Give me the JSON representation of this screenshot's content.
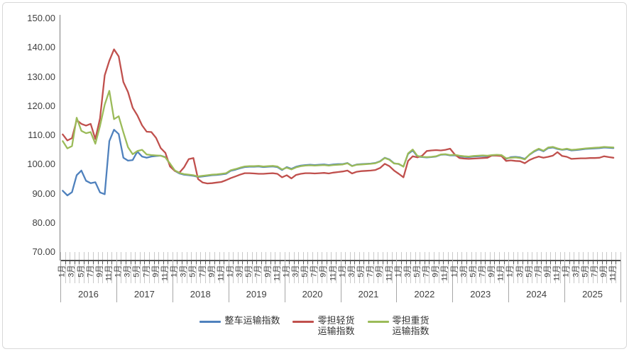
{
  "chart_data": {
    "type": "line",
    "title": "",
    "grid": "off",
    "legend_position": "bottom",
    "y_axis": {
      "min_labeled": 70,
      "max_labeled": 150,
      "tick_step": 10,
      "ticks": [
        "150.00",
        "140.00",
        "130.00",
        "120.00",
        "110.00",
        "100.00",
        "90.00",
        "80.00",
        "70.00"
      ]
    },
    "x_axis": {
      "years": [
        "2016",
        "2017",
        "2018",
        "2019",
        "2020",
        "2021",
        "2022",
        "2023",
        "2024",
        "2025"
      ],
      "month_labels": [
        "1月",
        "3月",
        "5月",
        "7月",
        "9月",
        "11月"
      ],
      "months_total": 119,
      "range": "2016-01 to 2025-11"
    },
    "series": [
      {
        "name": "整车运输指数",
        "label_lines": [
          "整车运输指数",
          ""
        ],
        "color": "#4F81BD",
        "values": [
          91.0,
          89.4,
          90.5,
          96.3,
          97.9,
          94.4,
          93.6,
          93.9,
          90.4,
          89.8,
          108.0,
          111.9,
          110.4,
          102.3,
          101.3,
          101.5,
          104.4,
          102.7,
          102.3,
          102.7,
          102.9,
          103.0,
          102.5,
          100.1,
          97.8,
          96.9,
          96.5,
          96.3,
          96.1,
          95.7,
          95.9,
          96.1,
          96.3,
          96.4,
          96.6,
          96.8,
          97.8,
          98.2,
          98.7,
          99.1,
          99.2,
          99.2,
          99.3,
          99.1,
          99.2,
          99.3,
          99.1,
          98.1,
          99.1,
          98.5,
          99.2,
          99.6,
          99.8,
          99.9,
          99.8,
          99.9,
          100.0,
          99.8,
          100.0,
          100.1,
          100.1,
          100.5,
          99.5,
          100.0,
          100.1,
          100.2,
          100.3,
          100.5,
          101.1,
          102.3,
          101.7,
          100.4,
          100.1,
          99.3,
          103.6,
          104.8,
          102.7,
          102.5,
          102.4,
          102.5,
          102.7,
          103.3,
          103.4,
          103.1,
          103.1,
          102.8,
          102.6,
          102.5,
          102.7,
          102.8,
          102.9,
          102.8,
          103.0,
          103.1,
          103.0,
          101.9,
          102.5,
          102.6,
          102.4,
          101.9,
          103.3,
          104.4,
          105.2,
          104.5,
          105.6,
          105.8,
          105.3,
          105.0,
          105.2,
          104.8,
          104.9,
          105.1,
          105.3,
          105.4,
          105.5,
          105.6,
          105.8,
          105.7,
          105.6
        ]
      },
      {
        "name": "零担轻货运输指数",
        "label_lines": [
          "零担轻货",
          "运输指数"
        ],
        "color": "#C0504D",
        "values": [
          110.3,
          108.2,
          109.0,
          115.2,
          113.9,
          113.3,
          113.9,
          108.7,
          115.8,
          130.5,
          135.5,
          139.4,
          137.0,
          128.2,
          124.8,
          119.4,
          116.8,
          113.4,
          111.2,
          111.1,
          109.1,
          105.6,
          104.0,
          99.3,
          97.8,
          97.2,
          99.0,
          101.8,
          102.2,
          95.0,
          93.8,
          93.5,
          93.6,
          93.8,
          94.0,
          94.6,
          95.3,
          95.9,
          96.5,
          97.0,
          97.0,
          96.9,
          96.8,
          96.8,
          96.9,
          97.0,
          96.8,
          95.6,
          96.3,
          95.2,
          96.4,
          96.8,
          97.0,
          97.0,
          96.9,
          97.0,
          97.1,
          96.9,
          97.2,
          97.4,
          97.6,
          97.9,
          96.9,
          97.5,
          97.7,
          97.8,
          97.9,
          98.1,
          98.8,
          100.2,
          99.4,
          97.9,
          96.8,
          95.6,
          101.2,
          102.8,
          102.4,
          103.0,
          104.6,
          104.8,
          104.9,
          104.8,
          105.0,
          105.4,
          103.4,
          102.2,
          102.0,
          101.9,
          102.0,
          102.1,
          102.2,
          102.3,
          103.1,
          103.0,
          102.9,
          101.2,
          101.4,
          101.2,
          101.1,
          100.4,
          101.5,
          102.2,
          102.7,
          102.3,
          102.6,
          103.0,
          104.2,
          102.9,
          102.6,
          101.9,
          102.0,
          102.1,
          102.1,
          102.2,
          102.2,
          102.3,
          102.8,
          102.5,
          102.3
        ]
      },
      {
        "name": "零担重货运输指数",
        "label_lines": [
          "零担重货",
          "运输指数"
        ],
        "color": "#9BBB59",
        "values": [
          108.0,
          105.5,
          106.3,
          116.0,
          111.5,
          110.7,
          111.1,
          107.1,
          113.2,
          120.5,
          125.2,
          115.5,
          116.5,
          111.0,
          105.9,
          103.5,
          104.6,
          105.0,
          103.4,
          103.2,
          103.1,
          103.0,
          102.4,
          100.3,
          98.0,
          97.1,
          96.7,
          96.5,
          96.3,
          95.9,
          96.1,
          96.3,
          96.5,
          96.6,
          96.8,
          97.0,
          98.0,
          98.4,
          98.9,
          99.3,
          99.4,
          99.4,
          99.5,
          99.3,
          99.4,
          99.5,
          99.3,
          98.3,
          98.9,
          98.3,
          99.0,
          99.4,
          99.6,
          99.7,
          99.6,
          99.7,
          99.8,
          99.6,
          99.8,
          99.9,
          100.0,
          100.4,
          99.4,
          99.9,
          100.0,
          100.1,
          100.2,
          100.4,
          101.0,
          102.2,
          101.6,
          100.3,
          100.2,
          99.2,
          103.8,
          105.1,
          102.9,
          102.6,
          102.5,
          102.6,
          102.8,
          103.4,
          103.5,
          103.2,
          103.3,
          103.0,
          102.8,
          102.7,
          102.9,
          103.0,
          103.1,
          103.0,
          103.2,
          103.3,
          103.2,
          102.1,
          102.3,
          102.4,
          102.2,
          101.7,
          103.4,
          104.6,
          105.4,
          104.7,
          105.8,
          106.0,
          105.5,
          105.1,
          105.4,
          105.0,
          105.1,
          105.3,
          105.5,
          105.6,
          105.7,
          105.8,
          106.0,
          105.9,
          105.8
        ]
      }
    ]
  }
}
